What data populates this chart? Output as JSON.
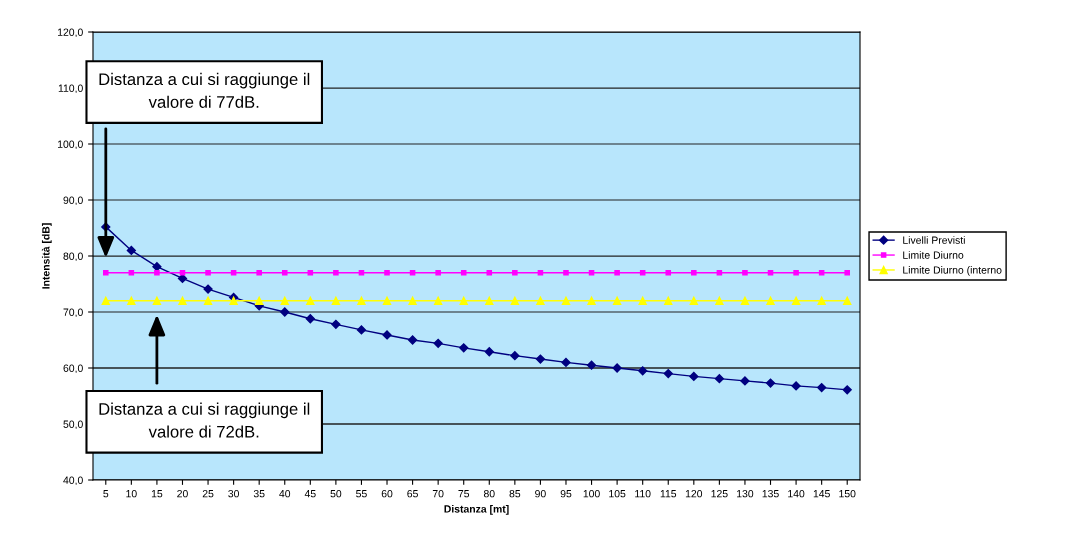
{
  "chart_data": {
    "type": "line",
    "xlabel": "Distanza [mt]",
    "ylabel": "Intensità [dB]",
    "categories": [
      "5",
      "10",
      "15",
      "20",
      "25",
      "30",
      "35",
      "40",
      "45",
      "50",
      "55",
      "60",
      "65",
      "70",
      "75",
      "80",
      "85",
      "90",
      "95",
      "100",
      "105",
      "110",
      "115",
      "120",
      "125",
      "130",
      "135",
      "140",
      "145",
      "150"
    ],
    "series": [
      {
        "name": "Livelli Previsti",
        "color": "#000080",
        "marker": "diamond",
        "values": [
          85.2,
          81.0,
          78.1,
          76.0,
          74.1,
          72.6,
          71.1,
          70.0,
          68.8,
          67.8,
          66.8,
          65.9,
          65.0,
          64.4,
          63.6,
          62.9,
          62.2,
          61.6,
          61.0,
          60.5,
          60.0,
          59.5,
          59.0,
          58.5,
          58.1,
          57.7,
          57.3,
          56.8,
          56.5,
          56.1
        ]
      },
      {
        "name": "Limite Diurno",
        "color": "#ff00ff",
        "marker": "square",
        "values": [
          77,
          77,
          77,
          77,
          77,
          77,
          77,
          77,
          77,
          77,
          77,
          77,
          77,
          77,
          77,
          77,
          77,
          77,
          77,
          77,
          77,
          77,
          77,
          77,
          77,
          77,
          77,
          77,
          77,
          77
        ]
      },
      {
        "name": "Limite Diurno (interno",
        "color": "#ffff00",
        "marker": "triangle",
        "values": [
          72,
          72,
          72,
          72,
          72,
          72,
          72,
          72,
          72,
          72,
          72,
          72,
          72,
          72,
          72,
          72,
          72,
          72,
          72,
          72,
          72,
          72,
          72,
          72,
          72,
          72,
          72,
          72,
          72,
          72
        ]
      }
    ],
    "ylim": [
      40,
      120
    ],
    "yticks": [
      {
        "value": 40,
        "label": "40,0"
      },
      {
        "value": 50,
        "label": "50,0"
      },
      {
        "value": 60,
        "label": "60,0"
      },
      {
        "value": 70,
        "label": "70,0"
      },
      {
        "value": 80,
        "label": "80,0"
      },
      {
        "value": 90,
        "label": "90,0"
      },
      {
        "value": 100,
        "label": "100,0"
      },
      {
        "value": 110,
        "label": "110,0"
      },
      {
        "value": 120,
        "label": "120,0"
      }
    ],
    "grid": "y",
    "legend": "right",
    "line_style": "solid",
    "annotations": [
      "Distanza a cui si raggiunge il\nvalore di 77dB.",
      "Distanza a cui si raggiunge il\nvalore di 72dB."
    ]
  }
}
